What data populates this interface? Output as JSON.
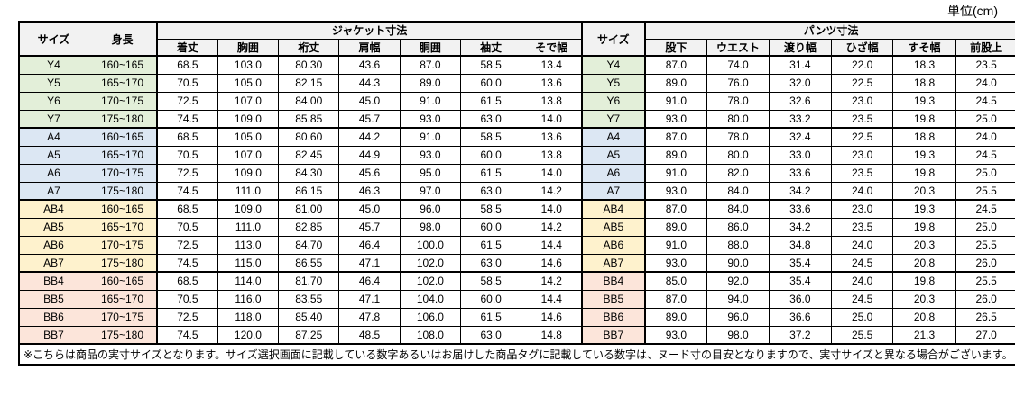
{
  "unit_label": "単位(cm)",
  "colors": {
    "y": "#E3EFD9",
    "a": "#DCE7F3",
    "ab": "#FEF2CD",
    "bb": "#FCE5DA",
    "header": "#F2F2F2",
    "border": "#000000"
  },
  "table": {
    "header": {
      "size": "サイズ",
      "height": "身長",
      "jacket_group": "ジャケット寸法",
      "size2": "サイズ",
      "pants_group": "パンツ寸法",
      "jacket_cols": [
        "着丈",
        "胸囲",
        "裄丈",
        "肩幅",
        "胴囲",
        "袖丈",
        "そで幅"
      ],
      "pants_cols": [
        "股下",
        "ウエスト",
        "渡り幅",
        "ひざ幅",
        "すそ幅",
        "前股上"
      ]
    },
    "rows": [
      {
        "group": "y",
        "size": "Y4",
        "height": "160~165",
        "jacket": [
          "68.5",
          "103.0",
          "80.30",
          "43.6",
          "87.0",
          "58.5",
          "13.4"
        ],
        "pants": [
          "87.0",
          "74.0",
          "31.4",
          "22.0",
          "18.3",
          "23.5"
        ]
      },
      {
        "group": "y",
        "size": "Y5",
        "height": "165~170",
        "jacket": [
          "70.5",
          "105.0",
          "82.15",
          "44.3",
          "89.0",
          "60.0",
          "13.6"
        ],
        "pants": [
          "89.0",
          "76.0",
          "32.0",
          "22.5",
          "18.8",
          "24.0"
        ]
      },
      {
        "group": "y",
        "size": "Y6",
        "height": "170~175",
        "jacket": [
          "72.5",
          "107.0",
          "84.00",
          "45.0",
          "91.0",
          "61.5",
          "13.8"
        ],
        "pants": [
          "91.0",
          "78.0",
          "32.6",
          "23.0",
          "19.3",
          "24.5"
        ]
      },
      {
        "group": "y",
        "size": "Y7",
        "height": "175~180",
        "jacket": [
          "74.5",
          "109.0",
          "85.85",
          "45.7",
          "93.0",
          "63.0",
          "14.0"
        ],
        "pants": [
          "93.0",
          "80.0",
          "33.2",
          "23.5",
          "19.8",
          "25.0"
        ]
      },
      {
        "group": "a",
        "size": "A4",
        "height": "160~165",
        "jacket": [
          "68.5",
          "105.0",
          "80.60",
          "44.2",
          "91.0",
          "58.5",
          "13.6"
        ],
        "pants": [
          "87.0",
          "78.0",
          "32.4",
          "22.5",
          "18.8",
          "24.0"
        ]
      },
      {
        "group": "a",
        "size": "A5",
        "height": "165~170",
        "jacket": [
          "70.5",
          "107.0",
          "82.45",
          "44.9",
          "93.0",
          "60.0",
          "13.8"
        ],
        "pants": [
          "89.0",
          "80.0",
          "33.0",
          "23.0",
          "19.3",
          "24.5"
        ]
      },
      {
        "group": "a",
        "size": "A6",
        "height": "170~175",
        "jacket": [
          "72.5",
          "109.0",
          "84.30",
          "45.6",
          "95.0",
          "61.5",
          "14.0"
        ],
        "pants": [
          "91.0",
          "82.0",
          "33.6",
          "23.5",
          "19.8",
          "25.0"
        ]
      },
      {
        "group": "a",
        "size": "A7",
        "height": "175~180",
        "jacket": [
          "74.5",
          "111.0",
          "86.15",
          "46.3",
          "97.0",
          "63.0",
          "14.2"
        ],
        "pants": [
          "93.0",
          "84.0",
          "34.2",
          "24.0",
          "20.3",
          "25.5"
        ]
      },
      {
        "group": "ab",
        "size": "AB4",
        "height": "160~165",
        "jacket": [
          "68.5",
          "109.0",
          "81.00",
          "45.0",
          "96.0",
          "58.5",
          "14.0"
        ],
        "pants": [
          "87.0",
          "84.0",
          "33.6",
          "23.0",
          "19.3",
          "24.5"
        ]
      },
      {
        "group": "ab",
        "size": "AB5",
        "height": "165~170",
        "jacket": [
          "70.5",
          "111.0",
          "82.85",
          "45.7",
          "98.0",
          "60.0",
          "14.2"
        ],
        "pants": [
          "89.0",
          "86.0",
          "34.2",
          "23.5",
          "19.8",
          "25.0"
        ]
      },
      {
        "group": "ab",
        "size": "AB6",
        "height": "170~175",
        "jacket": [
          "72.5",
          "113.0",
          "84.70",
          "46.4",
          "100.0",
          "61.5",
          "14.4"
        ],
        "pants": [
          "91.0",
          "88.0",
          "34.8",
          "24.0",
          "20.3",
          "25.5"
        ]
      },
      {
        "group": "ab",
        "size": "AB7",
        "height": "175~180",
        "jacket": [
          "74.5",
          "115.0",
          "86.55",
          "47.1",
          "102.0",
          "63.0",
          "14.6"
        ],
        "pants": [
          "93.0",
          "90.0",
          "35.4",
          "24.5",
          "20.8",
          "26.0"
        ]
      },
      {
        "group": "bb",
        "size": "BB4",
        "height": "160~165",
        "jacket": [
          "68.5",
          "114.0",
          "81.70",
          "46.4",
          "102.0",
          "58.5",
          "14.2"
        ],
        "pants": [
          "85.0",
          "92.0",
          "35.4",
          "24.0",
          "19.8",
          "25.5"
        ]
      },
      {
        "group": "bb",
        "size": "BB5",
        "height": "165~170",
        "jacket": [
          "70.5",
          "116.0",
          "83.55",
          "47.1",
          "104.0",
          "60.0",
          "14.4"
        ],
        "pants": [
          "87.0",
          "94.0",
          "36.0",
          "24.5",
          "20.3",
          "26.0"
        ]
      },
      {
        "group": "bb",
        "size": "BB6",
        "height": "170~175",
        "jacket": [
          "72.5",
          "118.0",
          "85.40",
          "47.8",
          "106.0",
          "61.5",
          "14.6"
        ],
        "pants": [
          "89.0",
          "96.0",
          "36.6",
          "25.0",
          "20.8",
          "26.5"
        ]
      },
      {
        "group": "bb",
        "size": "BB7",
        "height": "175~180",
        "jacket": [
          "74.5",
          "120.0",
          "87.25",
          "48.5",
          "108.0",
          "63.0",
          "14.8"
        ],
        "pants": [
          "93.0",
          "98.0",
          "37.2",
          "25.5",
          "21.3",
          "27.0"
        ]
      }
    ]
  },
  "footnote": "※こちらは商品の実寸サイズとなります。サイズ選択画面に記載している数字あるいはお届けした商品タグに記載している数字は、ヌード寸の目安となりますので、実寸サイズと異なる場合がございます。"
}
